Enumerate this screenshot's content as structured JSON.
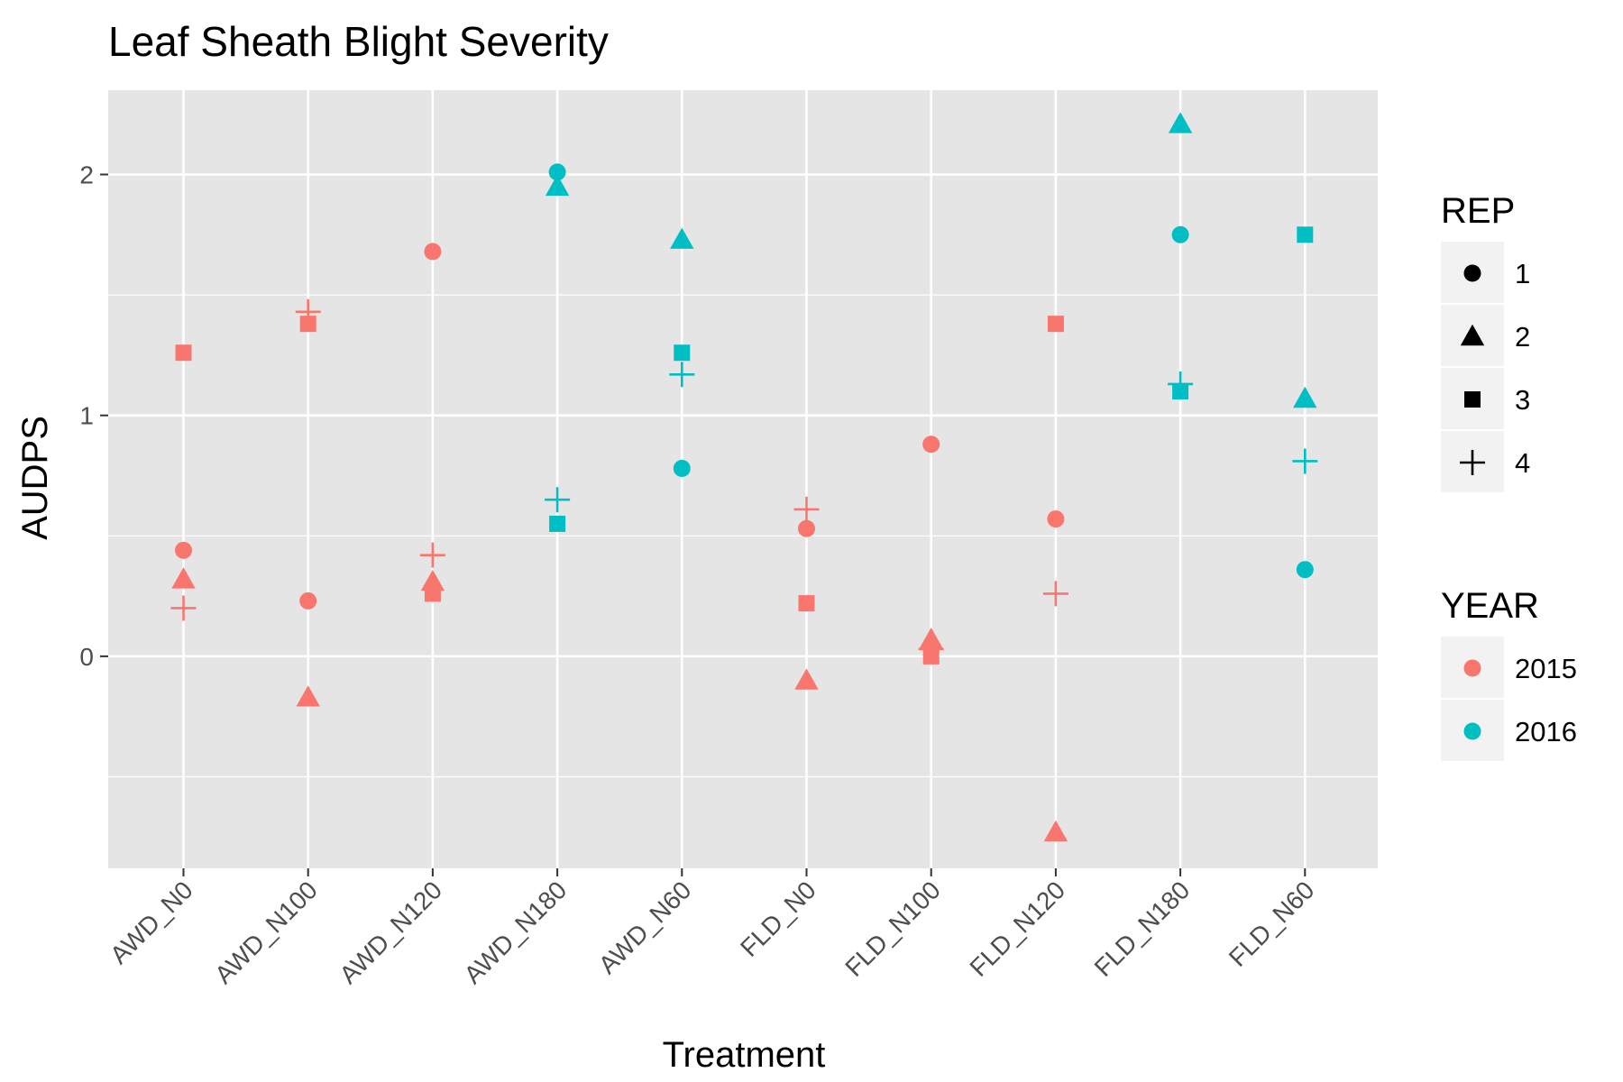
{
  "colors": {
    "panel_bg": "#e5e5e5",
    "grid": "#ffffff",
    "tick": "#333333",
    "tick_text": "#4d4d4d",
    "year_2015": "#f8766d",
    "year_2016": "#00bfc4",
    "legend_key_bg": "#f2f2f2"
  },
  "chart_data": {
    "type": "scatter",
    "title": "Leaf Sheath Blight Severity",
    "xlabel": "Treatment",
    "ylabel": "AUDPS",
    "categories": [
      "AWD_N0",
      "AWD_N100",
      "AWD_N120",
      "AWD_N180",
      "AWD_N60",
      "FLD_N0",
      "FLD_N100",
      "FLD_N120",
      "FLD_N180",
      "FLD_N60"
    ],
    "ylim": [
      -0.88,
      2.35
    ],
    "y_ticks": [
      0,
      1,
      2
    ],
    "y_tick_labels": [
      "0",
      "1",
      "2"
    ],
    "grid": true,
    "legend_position": "right",
    "shape_legend": {
      "title": "REP",
      "entries": [
        {
          "label": "1",
          "shape": "circle"
        },
        {
          "label": "2",
          "shape": "triangle"
        },
        {
          "label": "3",
          "shape": "square"
        },
        {
          "label": "4",
          "shape": "plus"
        }
      ]
    },
    "color_legend": {
      "title": "YEAR",
      "entries": [
        {
          "label": "2015",
          "color": "#f8766d"
        },
        {
          "label": "2016",
          "color": "#00bfc4"
        }
      ]
    },
    "points": [
      {
        "x": "AWD_N0",
        "y": 1.26,
        "rep": "3",
        "year": "2015"
      },
      {
        "x": "AWD_N0",
        "y": 0.44,
        "rep": "1",
        "year": "2015"
      },
      {
        "x": "AWD_N0",
        "y": 0.32,
        "rep": "2",
        "year": "2015"
      },
      {
        "x": "AWD_N0",
        "y": 0.2,
        "rep": "4",
        "year": "2015"
      },
      {
        "x": "AWD_N100",
        "y": 1.43,
        "rep": "4",
        "year": "2015"
      },
      {
        "x": "AWD_N100",
        "y": 1.38,
        "rep": "3",
        "year": "2015"
      },
      {
        "x": "AWD_N100",
        "y": 0.23,
        "rep": "1",
        "year": "2015"
      },
      {
        "x": "AWD_N100",
        "y": -0.17,
        "rep": "2",
        "year": "2015"
      },
      {
        "x": "AWD_N120",
        "y": 1.68,
        "rep": "1",
        "year": "2015"
      },
      {
        "x": "AWD_N120",
        "y": 0.42,
        "rep": "4",
        "year": "2015"
      },
      {
        "x": "AWD_N120",
        "y": 0.31,
        "rep": "2",
        "year": "2015"
      },
      {
        "x": "AWD_N120",
        "y": 0.26,
        "rep": "3",
        "year": "2015"
      },
      {
        "x": "AWD_N180",
        "y": 2.01,
        "rep": "1",
        "year": "2016"
      },
      {
        "x": "AWD_N180",
        "y": 1.95,
        "rep": "2",
        "year": "2016"
      },
      {
        "x": "AWD_N180",
        "y": 0.65,
        "rep": "4",
        "year": "2016"
      },
      {
        "x": "AWD_N180",
        "y": 0.55,
        "rep": "3",
        "year": "2016"
      },
      {
        "x": "AWD_N60",
        "y": 1.73,
        "rep": "2",
        "year": "2016"
      },
      {
        "x": "AWD_N60",
        "y": 1.26,
        "rep": "3",
        "year": "2016"
      },
      {
        "x": "AWD_N60",
        "y": 1.17,
        "rep": "4",
        "year": "2016"
      },
      {
        "x": "AWD_N60",
        "y": 0.78,
        "rep": "1",
        "year": "2016"
      },
      {
        "x": "FLD_N0",
        "y": 0.61,
        "rep": "4",
        "year": "2015"
      },
      {
        "x": "FLD_N0",
        "y": 0.53,
        "rep": "1",
        "year": "2015"
      },
      {
        "x": "FLD_N0",
        "y": 0.22,
        "rep": "3",
        "year": "2015"
      },
      {
        "x": "FLD_N0",
        "y": -0.1,
        "rep": "2",
        "year": "2015"
      },
      {
        "x": "FLD_N100",
        "y": 0.88,
        "rep": "1",
        "year": "2015"
      },
      {
        "x": "FLD_N100",
        "y": 0.07,
        "rep": "2",
        "year": "2015"
      },
      {
        "x": "FLD_N100",
        "y": 0.03,
        "rep": "4",
        "year": "2015"
      },
      {
        "x": "FLD_N100",
        "y": 0.0,
        "rep": "3",
        "year": "2015"
      },
      {
        "x": "FLD_N120",
        "y": 1.38,
        "rep": "3",
        "year": "2015"
      },
      {
        "x": "FLD_N120",
        "y": 0.57,
        "rep": "1",
        "year": "2015"
      },
      {
        "x": "FLD_N120",
        "y": 0.26,
        "rep": "4",
        "year": "2015"
      },
      {
        "x": "FLD_N120",
        "y": -0.73,
        "rep": "2",
        "year": "2015"
      },
      {
        "x": "FLD_N180",
        "y": 2.21,
        "rep": "2",
        "year": "2016"
      },
      {
        "x": "FLD_N180",
        "y": 1.75,
        "rep": "1",
        "year": "2016"
      },
      {
        "x": "FLD_N180",
        "y": 1.13,
        "rep": "4",
        "year": "2016"
      },
      {
        "x": "FLD_N180",
        "y": 1.1,
        "rep": "3",
        "year": "2016"
      },
      {
        "x": "FLD_N60",
        "y": 1.75,
        "rep": "3",
        "year": "2016"
      },
      {
        "x": "FLD_N60",
        "y": 1.07,
        "rep": "2",
        "year": "2016"
      },
      {
        "x": "FLD_N60",
        "y": 0.81,
        "rep": "4",
        "year": "2016"
      },
      {
        "x": "FLD_N60",
        "y": 0.36,
        "rep": "1",
        "year": "2016"
      }
    ]
  }
}
